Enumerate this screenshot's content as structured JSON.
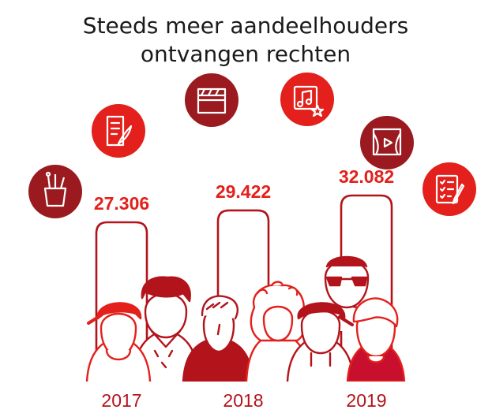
{
  "title_lines": [
    "Steeds meer aandeelhouders",
    "ontvangen rechten"
  ],
  "colors": {
    "dark_red": "#9a1a1f",
    "bright_red": "#e3201b",
    "mid_red": "#c8102e",
    "outline_red": "#b3131b",
    "text": "#1a1a1a"
  },
  "icons": [
    {
      "name": "art-supplies-icon",
      "color": "dark_red"
    },
    {
      "name": "writing-quill-icon",
      "color": "bright_red"
    },
    {
      "name": "film-clapper-icon",
      "color": "dark_red"
    },
    {
      "name": "music-star-icon",
      "color": "bright_red"
    },
    {
      "name": "theater-stage-icon",
      "color": "dark_red"
    },
    {
      "name": "checklist-pencil-icon",
      "color": "bright_red"
    }
  ],
  "chart_data": {
    "type": "bar",
    "title": "Steeds meer aandeelhouders ontvangen rechten",
    "categories": [
      "2017",
      "2018",
      "2019"
    ],
    "values": [
      27306,
      29422,
      32082
    ],
    "value_labels": [
      "27.306",
      "29.422",
      "32.082"
    ],
    "xlabel": "",
    "ylabel": "",
    "grid": false,
    "legend": "none"
  }
}
